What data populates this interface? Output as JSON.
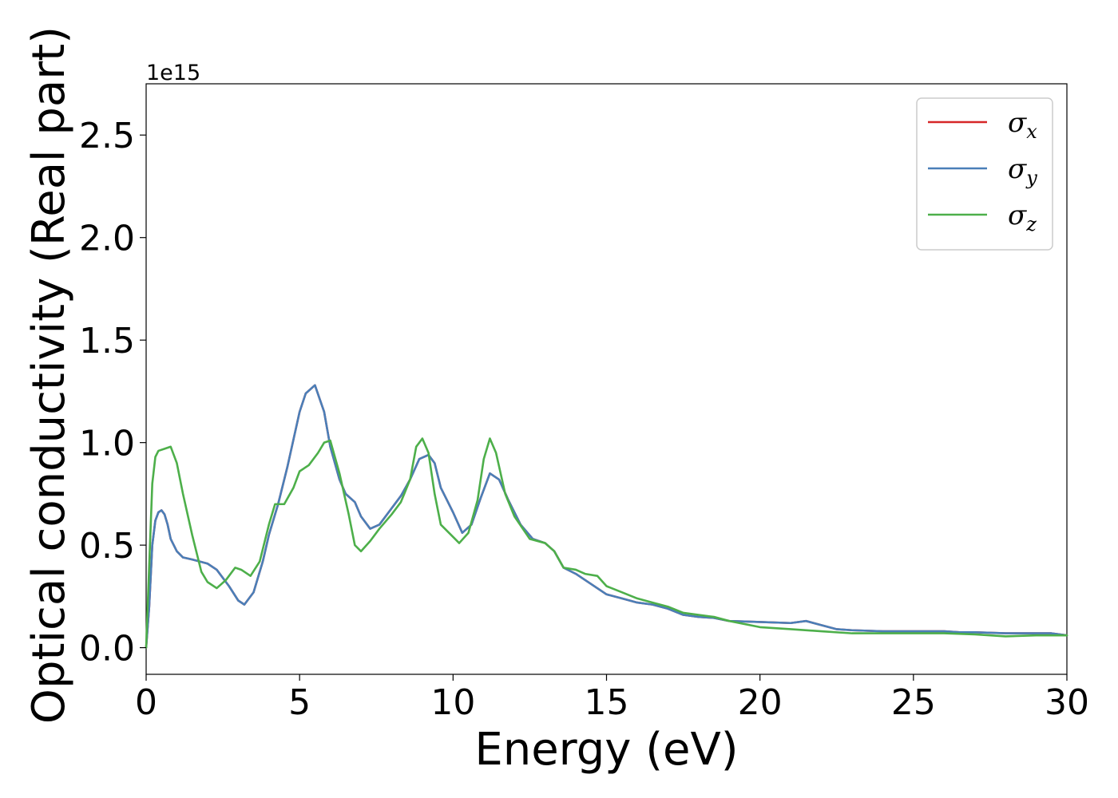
{
  "chart_data": {
    "type": "line",
    "title": "",
    "xlabel": "Energy (eV)",
    "ylabel": "Optical conductivity (Real part)",
    "y_offset_label": "1e15",
    "xlim": [
      0,
      30
    ],
    "ylim": [
      -0.13,
      2.75
    ],
    "xticks": [
      0,
      5,
      10,
      15,
      20,
      25,
      30
    ],
    "xtick_labels": [
      "0",
      "5",
      "10",
      "15",
      "20",
      "25",
      "30"
    ],
    "yticks": [
      0.0,
      0.5,
      1.0,
      1.5,
      2.0,
      2.5
    ],
    "ytick_labels": [
      "0.0",
      "0.5",
      "1.0",
      "1.5",
      "2.0",
      "2.5"
    ],
    "grid": false,
    "legend_position": "top-right",
    "series": [
      {
        "name": "σx",
        "symbol": "σ",
        "subscript": "x",
        "color": "#d62728",
        "x": [
          0,
          0.1,
          0.2,
          0.3,
          0.4,
          0.5,
          0.6,
          0.7,
          0.8,
          1.0,
          1.2,
          1.5,
          2.0,
          2.3,
          2.7,
          3.0,
          3.2,
          3.5,
          3.8,
          4.0,
          4.3,
          4.6,
          5.0,
          5.2,
          5.5,
          5.8,
          6.0,
          6.3,
          6.5,
          6.8,
          7.0,
          7.3,
          7.6,
          8.0,
          8.3,
          8.6,
          8.9,
          9.2,
          9.4,
          9.6,
          9.8,
          10.0,
          10.3,
          10.6,
          10.9,
          11.2,
          11.5,
          11.8,
          12.2,
          12.6,
          13.0,
          13.3,
          13.6,
          14.0,
          14.5,
          15.0,
          15.5,
          16.0,
          16.5,
          17.0,
          17.5,
          18.0,
          18.5,
          19.0,
          20.0,
          21.0,
          21.5,
          22.0,
          22.5,
          23.0,
          24.0,
          25.0,
          26.0,
          26.5,
          27.0,
          28.0,
          29.0,
          29.5,
          30.0
        ],
        "values": [
          0.0,
          0.2,
          0.5,
          0.62,
          0.66,
          0.67,
          0.65,
          0.6,
          0.53,
          0.47,
          0.44,
          0.43,
          0.41,
          0.38,
          0.3,
          0.23,
          0.21,
          0.27,
          0.42,
          0.55,
          0.7,
          0.88,
          1.15,
          1.24,
          1.28,
          1.15,
          0.98,
          0.82,
          0.75,
          0.71,
          0.64,
          0.58,
          0.6,
          0.68,
          0.74,
          0.82,
          0.92,
          0.94,
          0.9,
          0.78,
          0.72,
          0.66,
          0.56,
          0.6,
          0.73,
          0.85,
          0.82,
          0.72,
          0.6,
          0.53,
          0.51,
          0.47,
          0.39,
          0.36,
          0.31,
          0.26,
          0.24,
          0.22,
          0.21,
          0.19,
          0.16,
          0.15,
          0.145,
          0.13,
          0.125,
          0.12,
          0.13,
          0.11,
          0.09,
          0.085,
          0.08,
          0.08,
          0.08,
          0.075,
          0.075,
          0.07,
          0.07,
          0.07,
          0.06
        ]
      },
      {
        "name": "σy",
        "symbol": "σ",
        "subscript": "y",
        "color": "#4a7fb8",
        "x": [
          0,
          0.1,
          0.2,
          0.3,
          0.4,
          0.5,
          0.6,
          0.7,
          0.8,
          1.0,
          1.2,
          1.5,
          2.0,
          2.3,
          2.7,
          3.0,
          3.2,
          3.5,
          3.8,
          4.0,
          4.3,
          4.6,
          5.0,
          5.2,
          5.5,
          5.8,
          6.0,
          6.3,
          6.5,
          6.8,
          7.0,
          7.3,
          7.6,
          8.0,
          8.3,
          8.6,
          8.9,
          9.2,
          9.4,
          9.6,
          9.8,
          10.0,
          10.3,
          10.6,
          10.9,
          11.2,
          11.5,
          11.8,
          12.2,
          12.6,
          13.0,
          13.3,
          13.6,
          14.0,
          14.5,
          15.0,
          15.5,
          16.0,
          16.5,
          17.0,
          17.5,
          18.0,
          18.5,
          19.0,
          20.0,
          21.0,
          21.5,
          22.0,
          22.5,
          23.0,
          24.0,
          25.0,
          26.0,
          26.5,
          27.0,
          28.0,
          29.0,
          29.5,
          30.0
        ],
        "values": [
          0.0,
          0.2,
          0.5,
          0.62,
          0.66,
          0.67,
          0.65,
          0.6,
          0.53,
          0.47,
          0.44,
          0.43,
          0.41,
          0.38,
          0.3,
          0.23,
          0.21,
          0.27,
          0.42,
          0.55,
          0.7,
          0.88,
          1.15,
          1.24,
          1.28,
          1.15,
          0.98,
          0.82,
          0.75,
          0.71,
          0.64,
          0.58,
          0.6,
          0.68,
          0.74,
          0.82,
          0.92,
          0.94,
          0.9,
          0.78,
          0.72,
          0.66,
          0.56,
          0.6,
          0.73,
          0.85,
          0.82,
          0.72,
          0.6,
          0.53,
          0.51,
          0.47,
          0.39,
          0.36,
          0.31,
          0.26,
          0.24,
          0.22,
          0.21,
          0.19,
          0.16,
          0.15,
          0.145,
          0.13,
          0.125,
          0.12,
          0.13,
          0.11,
          0.09,
          0.085,
          0.08,
          0.08,
          0.08,
          0.075,
          0.075,
          0.07,
          0.07,
          0.07,
          0.06
        ]
      },
      {
        "name": "σz",
        "symbol": "σ",
        "subscript": "z",
        "color": "#4daf4a",
        "x": [
          0,
          0.1,
          0.2,
          0.3,
          0.4,
          0.6,
          0.8,
          1.0,
          1.2,
          1.5,
          1.8,
          2.0,
          2.3,
          2.6,
          2.9,
          3.1,
          3.4,
          3.7,
          4.0,
          4.2,
          4.5,
          4.8,
          5.0,
          5.3,
          5.6,
          5.8,
          6.0,
          6.3,
          6.6,
          6.8,
          7.0,
          7.3,
          7.6,
          8.0,
          8.3,
          8.6,
          8.8,
          9.0,
          9.2,
          9.4,
          9.6,
          10.0,
          10.2,
          10.5,
          10.8,
          11.0,
          11.2,
          11.4,
          11.7,
          12.0,
          12.5,
          13.0,
          13.3,
          13.6,
          14.0,
          14.3,
          14.7,
          15.0,
          15.5,
          16.0,
          16.5,
          17.0,
          17.5,
          18.0,
          18.5,
          19.0,
          20.0,
          21.0,
          22.0,
          23.0,
          24.0,
          25.0,
          26.0,
          27.0,
          27.5,
          28.0,
          29.0,
          30.0
        ],
        "values": [
          0.0,
          0.4,
          0.8,
          0.93,
          0.96,
          0.97,
          0.98,
          0.9,
          0.75,
          0.55,
          0.37,
          0.32,
          0.29,
          0.33,
          0.39,
          0.38,
          0.35,
          0.42,
          0.6,
          0.7,
          0.7,
          0.78,
          0.86,
          0.89,
          0.95,
          1.0,
          1.01,
          0.85,
          0.65,
          0.5,
          0.47,
          0.52,
          0.58,
          0.65,
          0.71,
          0.82,
          0.98,
          1.02,
          0.95,
          0.75,
          0.6,
          0.54,
          0.51,
          0.56,
          0.72,
          0.92,
          1.02,
          0.95,
          0.75,
          0.64,
          0.53,
          0.51,
          0.47,
          0.39,
          0.38,
          0.36,
          0.35,
          0.3,
          0.27,
          0.24,
          0.22,
          0.2,
          0.17,
          0.16,
          0.15,
          0.13,
          0.1,
          0.09,
          0.08,
          0.07,
          0.07,
          0.07,
          0.07,
          0.065,
          0.06,
          0.055,
          0.06,
          0.06
        ]
      }
    ]
  }
}
